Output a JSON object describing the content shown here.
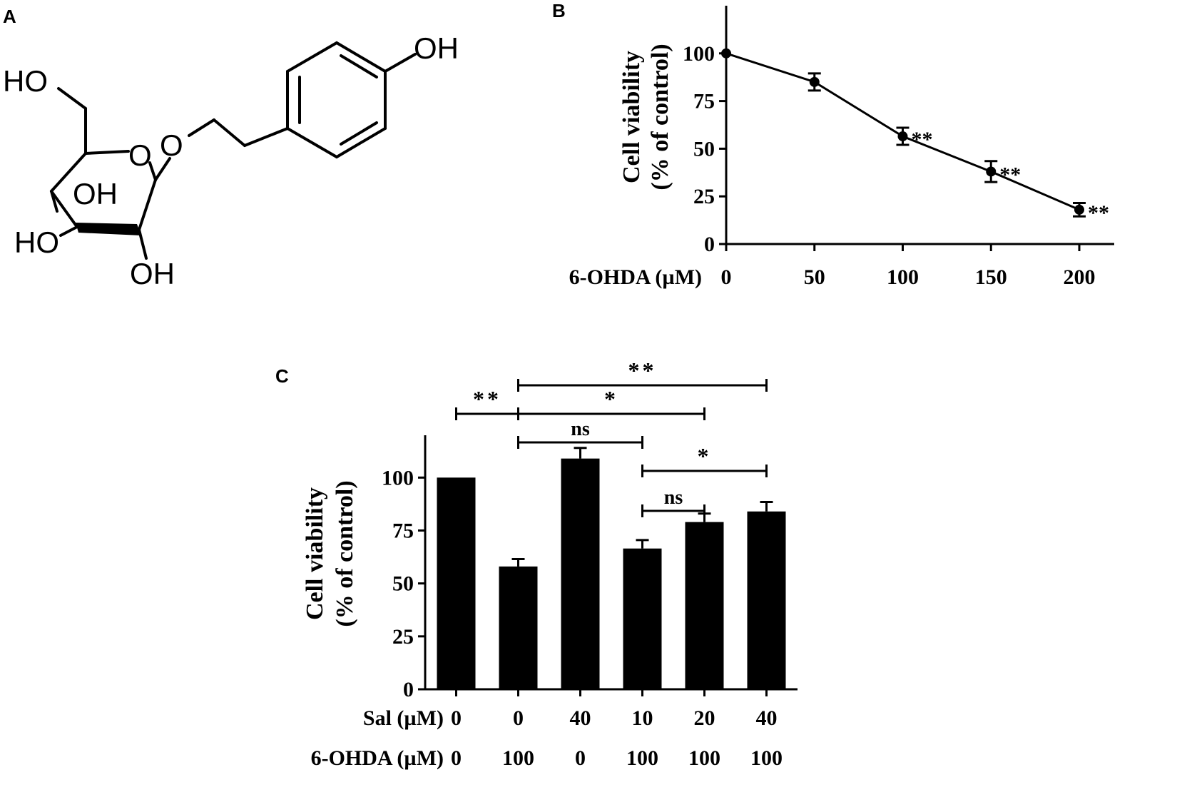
{
  "panels": {
    "A": {
      "label": "A",
      "atoms": [
        "OH",
        "HO",
        "O",
        "O",
        "OH",
        "HO",
        "OH"
      ]
    },
    "B": {
      "label": "B"
    },
    "C": {
      "label": "C"
    }
  },
  "chart_data": [
    {
      "panel": "B",
      "type": "line",
      "ylabel_line1": "Cell viability",
      "ylabel_line2": "(% of control)",
      "xlabel": "6-OHDA (µM)",
      "x": [
        0,
        50,
        100,
        150,
        200
      ],
      "x_tick_labels": [
        "0",
        "50",
        "100",
        "150",
        "200"
      ],
      "y": [
        100,
        85,
        56.5,
        38,
        18
      ],
      "error": [
        0,
        4.5,
        4.5,
        5.5,
        3.5
      ],
      "annotations": [
        "",
        "",
        "**",
        "**",
        "**"
      ],
      "ylim": [
        0,
        125
      ],
      "yticks": [
        0,
        25,
        50,
        75,
        100
      ],
      "grid": false
    },
    {
      "panel": "C",
      "type": "bar",
      "ylabel_line1": "Cell viability",
      "ylabel_line2": "(% of control)",
      "row_labels": [
        "Sal (µM)",
        "6-OHDA (µM)"
      ],
      "categories": [
        {
          "sal": "0",
          "ohda": "0"
        },
        {
          "sal": "0",
          "ohda": "100"
        },
        {
          "sal": "40",
          "ohda": "0"
        },
        {
          "sal": "10",
          "ohda": "100"
        },
        {
          "sal": "20",
          "ohda": "100"
        },
        {
          "sal": "40",
          "ohda": "100"
        }
      ],
      "values": [
        100,
        58,
        109,
        66.5,
        79,
        84
      ],
      "error": [
        0,
        3.5,
        5,
        4,
        4,
        4.5
      ],
      "ylim": [
        0,
        120
      ],
      "yticks": [
        0,
        25,
        50,
        75,
        100
      ],
      "comparisons": [
        {
          "from": 0,
          "to": 1,
          "label": "**"
        },
        {
          "from": 1,
          "to": 5,
          "label": "**"
        },
        {
          "from": 1,
          "to": 4,
          "label": "*"
        },
        {
          "from": 1,
          "to": 3,
          "label": "ns"
        },
        {
          "from": 3,
          "to": 5,
          "label": "*"
        },
        {
          "from": 3,
          "to": 4,
          "label": "ns"
        }
      ],
      "grid": false
    }
  ]
}
